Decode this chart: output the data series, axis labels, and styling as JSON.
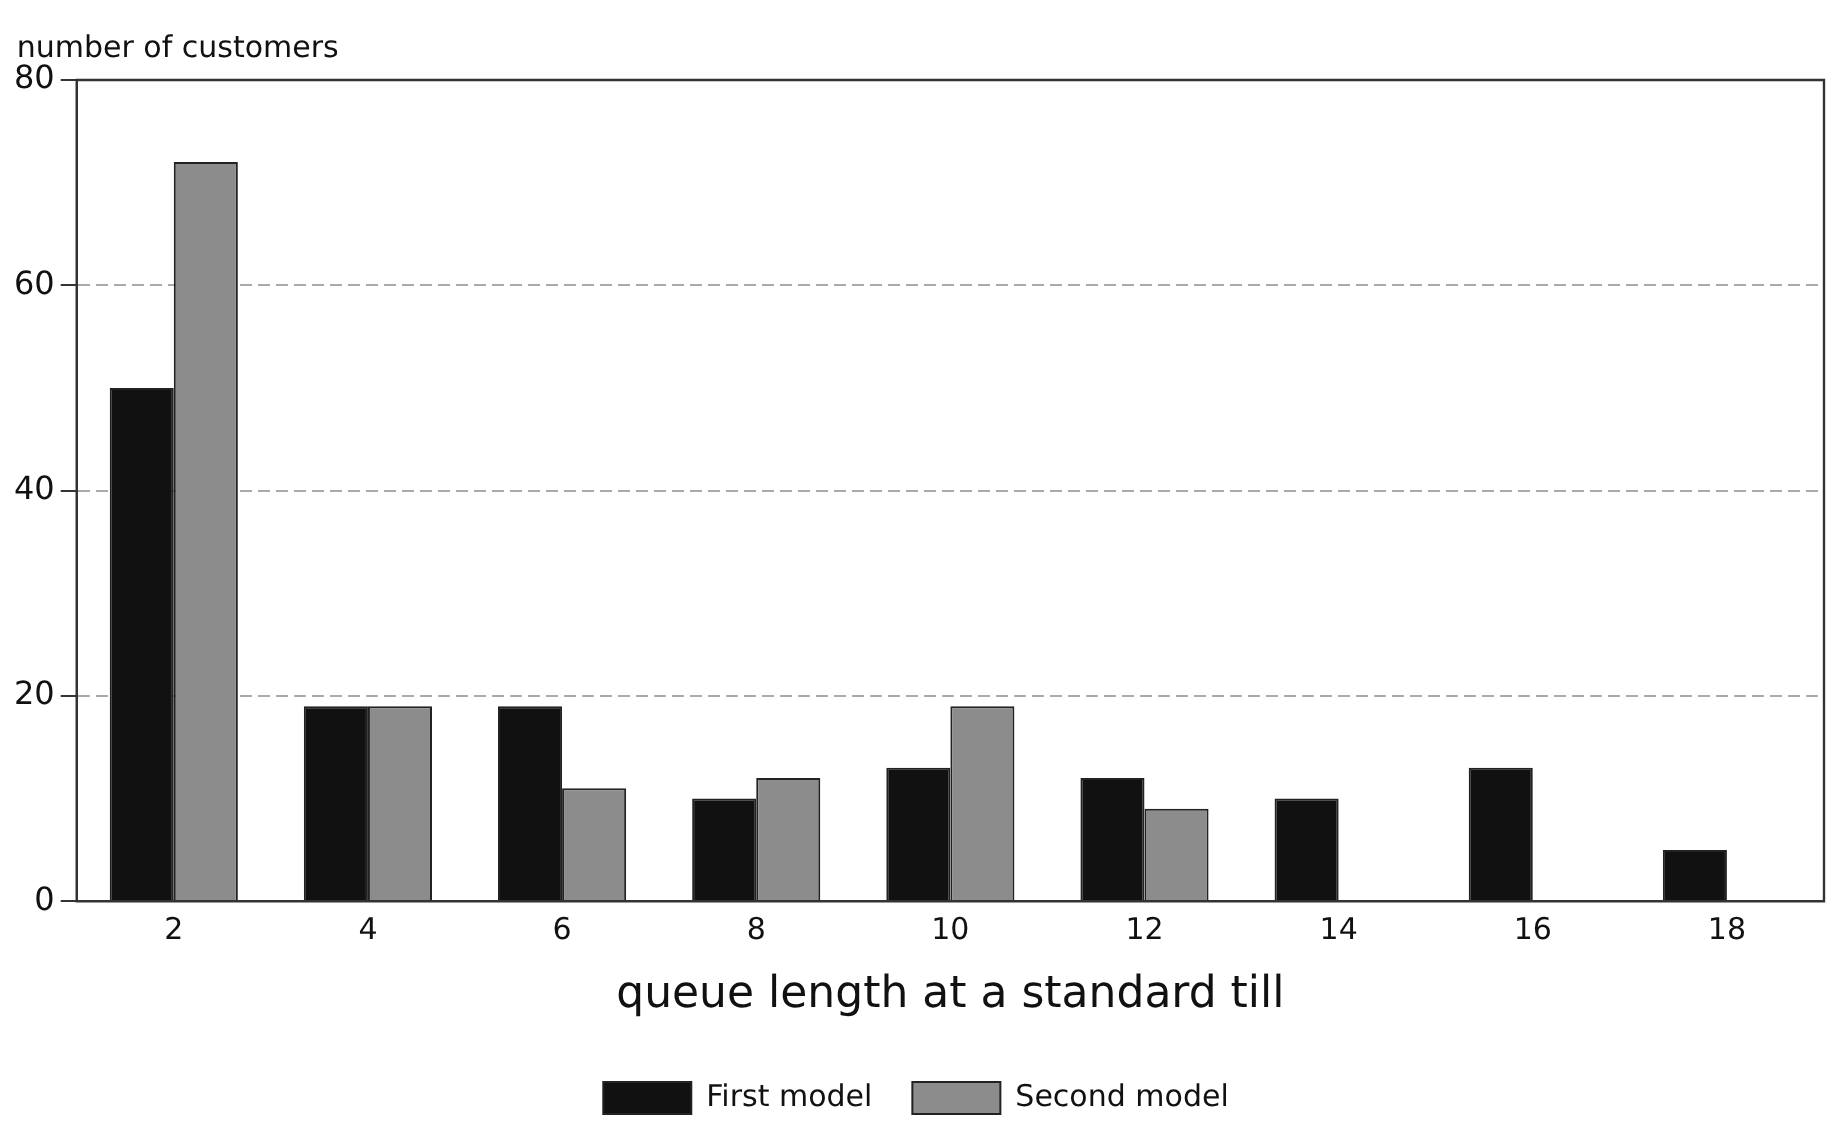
{
  "chart_data": {
    "type": "bar",
    "xlabel": "queue length at a standard till",
    "ylabel": "number of customers",
    "categories": [
      "2",
      "4",
      "6",
      "8",
      "10",
      "12",
      "14",
      "16",
      "18"
    ],
    "series": [
      {
        "name": "First model",
        "color": "#111111",
        "values": [
          50,
          19,
          19,
          10,
          13,
          12,
          10,
          13,
          5
        ]
      },
      {
        "name": "Second model",
        "color": "#8c8c8c",
        "values": [
          72,
          19,
          11,
          12,
          19,
          9,
          null,
          null,
          null
        ]
      }
    ],
    "ylim": [
      0,
      80
    ],
    "yticks": [
      0,
      20,
      40,
      60,
      80
    ],
    "grid": "y",
    "legend": "bottom"
  }
}
